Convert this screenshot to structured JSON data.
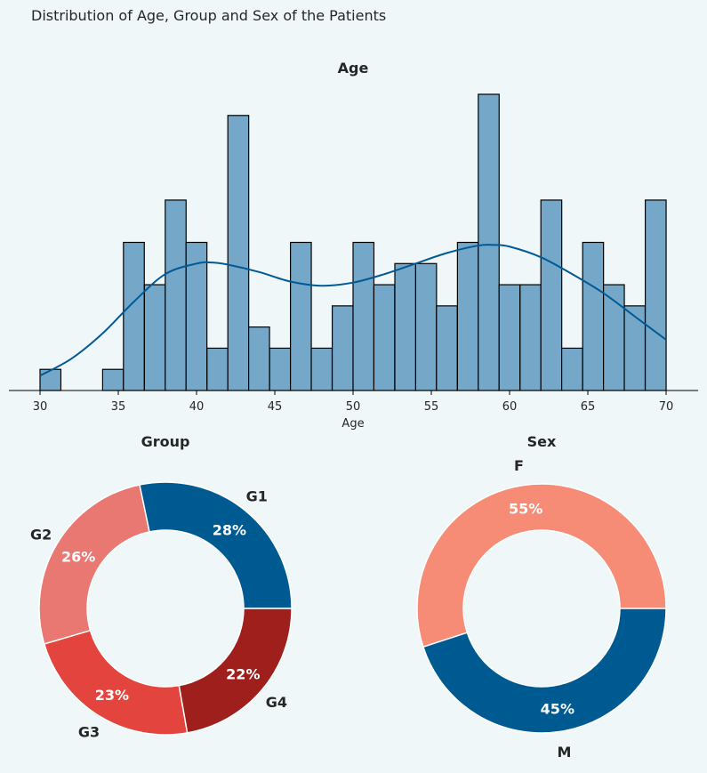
{
  "suptitle": "Distribution of Age, Group and Sex of the Patients",
  "chart_data": [
    {
      "type": "bar",
      "subtype": "histogram",
      "title": "Age",
      "xlabel": "Age",
      "ylabel": "",
      "y_axis_visible": false,
      "xlim": [
        30,
        70
      ],
      "xticks": [
        30,
        35,
        40,
        45,
        50,
        55,
        60,
        65,
        70
      ],
      "bin_width": 1.333,
      "bin_starts": [
        30,
        31.33,
        32.67,
        34,
        35.33,
        36.67,
        38,
        39.33,
        40.67,
        42,
        43.33,
        44.67,
        46,
        47.33,
        48.67,
        50,
        51.33,
        52.67,
        54,
        55.33,
        56.67,
        58,
        59.33,
        60.67,
        62,
        63.33,
        64.67,
        66,
        67.33,
        68.67
      ],
      "values": [
        1,
        0,
        0,
        1,
        7,
        5,
        9,
        7,
        2,
        13,
        3,
        2,
        7,
        2,
        4,
        7,
        5,
        6,
        6,
        4,
        7,
        14,
        5,
        5,
        9,
        2,
        7,
        5,
        4,
        9
      ],
      "ylim": [
        0,
        14
      ],
      "bar_color": "#75a8c8",
      "edge_color": "#000000",
      "kde": {
        "color": "#005a96",
        "x": [
          30,
          32,
          34,
          36,
          38,
          40,
          41,
          42,
          44,
          46,
          48,
          50,
          52,
          54,
          56,
          58,
          59,
          60,
          62,
          64,
          66,
          68,
          70
        ],
        "y": [
          0.7,
          1.5,
          2.7,
          4.2,
          5.5,
          6.0,
          6.05,
          5.95,
          5.6,
          5.15,
          4.95,
          5.1,
          5.5,
          6.0,
          6.5,
          6.85,
          6.88,
          6.8,
          6.3,
          5.5,
          4.6,
          3.5,
          2.4
        ]
      }
    },
    {
      "type": "pie",
      "subtype": "donut",
      "title": "Group",
      "labels": [
        "G1",
        "G2",
        "G3",
        "G4"
      ],
      "values": [
        28,
        26,
        23,
        22
      ],
      "value_labels": [
        "28%",
        "26%",
        "23%",
        "22%"
      ],
      "colors": [
        "#005a92",
        "#e97772",
        "#e3443e",
        "#9e1f1b"
      ],
      "start_angle": 0,
      "direction": "counterclockwise"
    },
    {
      "type": "pie",
      "subtype": "donut",
      "title": "Sex",
      "labels": [
        "F",
        "M"
      ],
      "values": [
        55,
        45
      ],
      "value_labels": [
        "55%",
        "45%"
      ],
      "colors": [
        "#f68c76",
        "#005a92"
      ],
      "start_angle": 0,
      "direction": "counterclockwise"
    }
  ]
}
